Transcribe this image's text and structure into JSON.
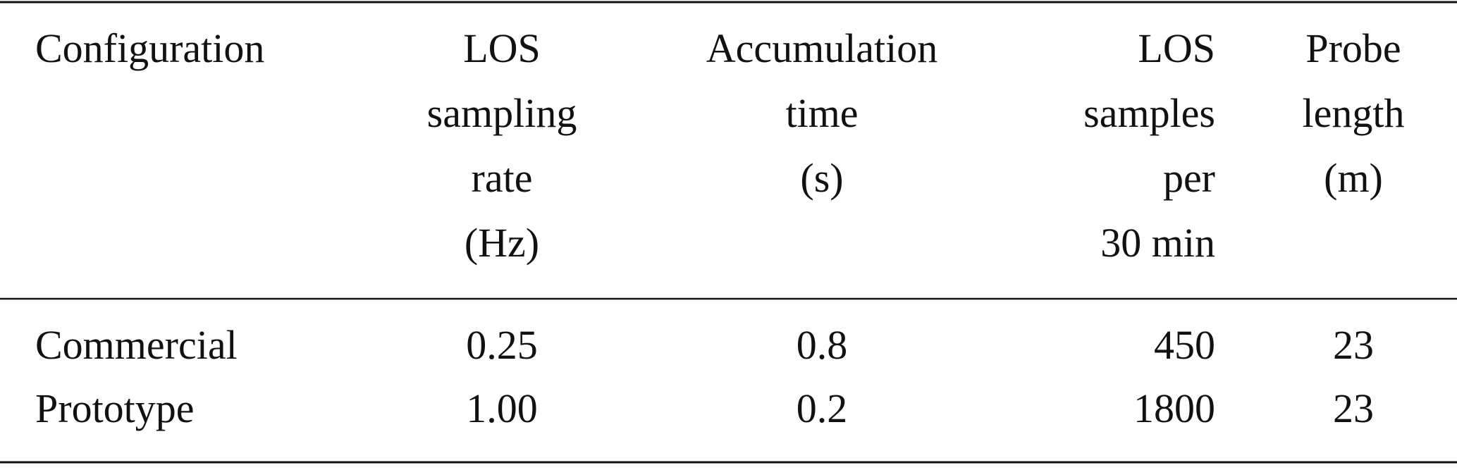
{
  "table": {
    "header": [
      [
        "Configuration"
      ],
      [
        "LOS",
        "sampling",
        "rate",
        "(Hz)"
      ],
      [
        "Accumulation",
        "time",
        "(s)"
      ],
      [
        "LOS",
        "samples",
        "per",
        "30 min"
      ],
      [
        "Probe",
        "length",
        "(m)"
      ]
    ],
    "rows": [
      [
        "Commercial",
        "0.25",
        "0.8",
        "450",
        "23"
      ],
      [
        "Prototype",
        "1.00",
        "0.2",
        "1800",
        "23"
      ]
    ]
  }
}
